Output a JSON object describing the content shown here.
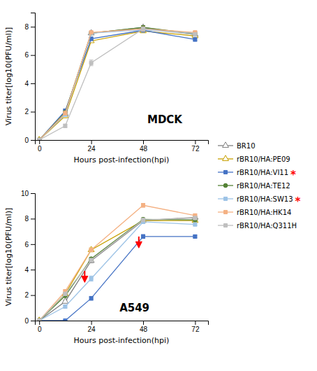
{
  "chart_data": [
    {
      "type": "line",
      "x_label": "Hours post-infection(hpi)",
      "y_label": "Virus titer[log10(PFU/ml)]",
      "x": [
        0,
        12,
        24,
        48,
        72
      ],
      "xlim": [
        -2,
        78
      ],
      "ylim": [
        0,
        9
      ],
      "xticks": [
        0,
        24,
        48,
        72
      ],
      "yticks": [
        0,
        2,
        4,
        6,
        8
      ],
      "series": [
        {
          "name": "BR10",
          "color": "#808080",
          "marker": "triangle-open",
          "values": [
            0,
            1.85,
            7.55,
            7.95,
            7.45
          ],
          "errors": [
            0,
            0.12,
            0.1,
            0.12,
            0.1
          ]
        },
        {
          "name": "rBR10/HA:PE09",
          "color": "#C8A000",
          "marker": "triangle-open",
          "values": [
            0,
            1.7,
            7.0,
            7.7,
            7.35
          ],
          "errors": [
            0,
            0.12,
            0.1,
            0.1,
            0.1
          ]
        },
        {
          "name": "rBR10/HA:VI11",
          "color": "#4472C4",
          "marker": "square",
          "values": [
            0,
            2.05,
            7.15,
            7.75,
            7.1
          ],
          "errors": [
            0,
            0.15,
            0.12,
            0.12,
            0.12
          ]
        },
        {
          "name": "rBR10/HA:TE12",
          "color": "#548235",
          "marker": "circle",
          "values": [
            0,
            1.95,
            7.55,
            7.95,
            7.5
          ],
          "errors": [
            0,
            0.12,
            0.1,
            0.12,
            0.1
          ]
        },
        {
          "name": "rBR10/HA:SW13",
          "color": "#9DC3E6",
          "marker": "square",
          "values": [
            0,
            1.8,
            7.55,
            7.8,
            7.55
          ],
          "errors": [
            0,
            0.12,
            0.1,
            0.1,
            0.1
          ]
        },
        {
          "name": "rBR10/HA:HK14",
          "color": "#F4B183",
          "marker": "square",
          "values": [
            0,
            1.9,
            7.6,
            7.85,
            7.6
          ],
          "errors": [
            0,
            0.12,
            0.1,
            0.15,
            0.1
          ]
        },
        {
          "name": "rBR10/HA:Q311H",
          "color": "#BFBFBF",
          "marker": "square",
          "values": [
            0,
            1.0,
            5.45,
            7.85,
            7.45
          ],
          "errors": [
            0,
            0.12,
            0.2,
            0.12,
            0.12
          ]
        }
      ],
      "annotations": [
        {
          "text": "MDCK",
          "x": 58,
          "y": 1.2
        }
      ]
    },
    {
      "type": "line",
      "x_label": "Hours post-infection(hpi)",
      "y_label": "Virus titer[log10(PFU/ml)]",
      "x": [
        0,
        12,
        24,
        48,
        72
      ],
      "xlim": [
        -2,
        78
      ],
      "ylim": [
        0,
        10
      ],
      "xticks": [
        0,
        24,
        48,
        72
      ],
      "yticks": [
        0,
        2,
        4,
        6,
        8,
        10
      ],
      "legend": "right",
      "series": [
        {
          "name": "BR10",
          "color": "#808080",
          "marker": "triangle-open",
          "values": [
            0,
            1.5,
            4.7,
            7.85,
            8.1
          ],
          "errors": [
            0,
            0.12,
            0.15,
            0.12,
            0.12
          ]
        },
        {
          "name": "rBR10/HA:PE09",
          "color": "#C8A000",
          "marker": "triangle-open",
          "values": [
            0,
            2.1,
            5.55,
            7.85,
            7.85
          ],
          "errors": [
            0,
            0.12,
            0.15,
            0.12,
            0.12
          ]
        },
        {
          "name": "rBR10/HA:VI11",
          "color": "#4472C4",
          "marker": "square",
          "values": [
            0,
            0.0,
            1.75,
            6.6,
            6.6
          ],
          "errors": [
            0,
            0.0,
            0.15,
            0.15,
            0.12
          ]
        },
        {
          "name": "rBR10/HA:TE12",
          "color": "#548235",
          "marker": "circle",
          "values": [
            0,
            1.95,
            4.85,
            7.95,
            7.9
          ],
          "errors": [
            0,
            0.12,
            0.12,
            0.12,
            0.12
          ]
        },
        {
          "name": "rBR10/HA:SW13",
          "color": "#9DC3E6",
          "marker": "square",
          "values": [
            0,
            1.1,
            3.3,
            7.75,
            7.55
          ],
          "errors": [
            0,
            0.12,
            0.2,
            0.12,
            0.12
          ]
        },
        {
          "name": "rBR10/HA:HK14",
          "color": "#F4B183",
          "marker": "square",
          "values": [
            0,
            2.3,
            5.55,
            9.05,
            8.25
          ],
          "errors": [
            0,
            0.12,
            0.12,
            0.15,
            0.12
          ]
        },
        {
          "name": "rBR10/HA:Q311H",
          "color": "#BFBFBF",
          "marker": "square",
          "values": [
            0,
            2.1,
            4.75,
            7.9,
            8.05
          ],
          "errors": [
            0,
            0.12,
            0.12,
            0.12,
            0.12
          ]
        }
      ],
      "arrows": [
        {
          "x": 21,
          "y_tip": 3.0,
          "y_tail": 3.9,
          "color": "red"
        },
        {
          "x": 46,
          "y_tip": 5.7,
          "y_tail": 6.6,
          "color": "red"
        }
      ],
      "annotations": [
        {
          "text": "A549",
          "x": 44,
          "y": 0.7
        },
        {
          "text": "*",
          "legend_entry": "rBR10/HA:VI11",
          "color": "red"
        },
        {
          "text": "*",
          "legend_entry": "rBR10/HA:SW13",
          "color": "red"
        }
      ]
    }
  ]
}
